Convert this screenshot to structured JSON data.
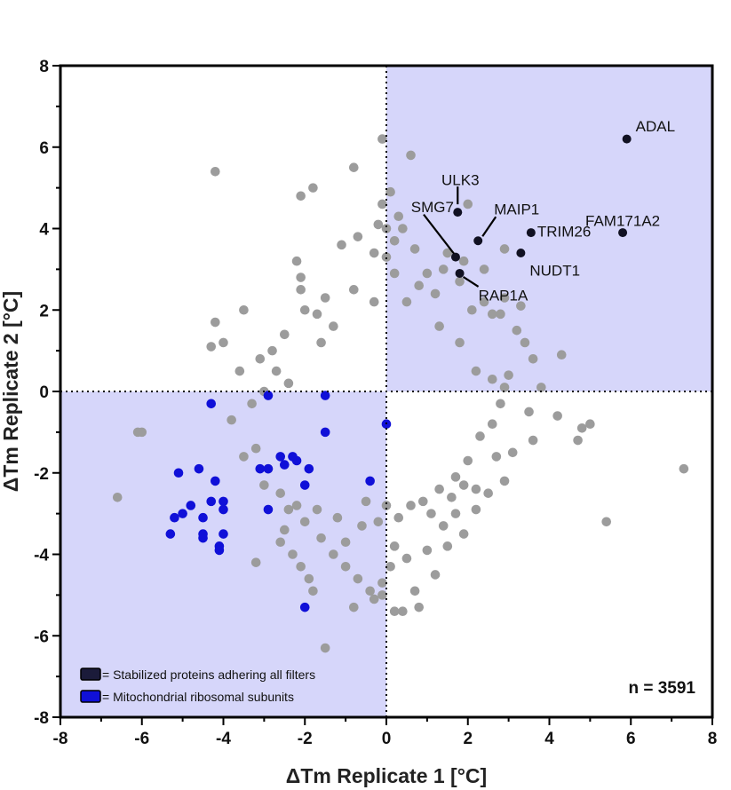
{
  "chart_data": {
    "type": "scatter",
    "xlabel": "ΔTm Replicate 1 [°C]",
    "ylabel": "ΔTm Replicate 2 [°C]",
    "xlim": [
      -8,
      8
    ],
    "ylim": [
      -8,
      8
    ],
    "xticks": [
      "-8",
      "-6",
      "-4",
      "-2",
      "0",
      "2",
      "4",
      "6",
      "8"
    ],
    "yticks": [
      "-8",
      "-6",
      "-4",
      "-2",
      "0",
      "2",
      "4",
      "6",
      "8"
    ],
    "grid": false,
    "reference_lines": [
      {
        "axis": "x",
        "value": 0,
        "style": "dotted"
      },
      {
        "axis": "y",
        "value": 0,
        "style": "dotted"
      }
    ],
    "shaded_quadrants": [
      "x>0,y>0",
      "x<0,y<0"
    ],
    "n_label": "n = 3591",
    "legend": {
      "placement": "bottom-left",
      "entries": [
        {
          "label": "= Stabilized proteins adhering all filters",
          "color": "#1b1b3a"
        },
        {
          "label": "= Mitochondrial ribosomal subunits",
          "color": "#1010d8"
        }
      ]
    },
    "series": [
      {
        "role": "background",
        "color": "#9c9c9c",
        "points": [
          [
            -0.1,
            6.2
          ],
          [
            0.6,
            5.8
          ],
          [
            -4.2,
            5.4
          ],
          [
            -0.8,
            5.5
          ],
          [
            -1.8,
            5.0
          ],
          [
            -2.1,
            4.8
          ],
          [
            0.1,
            4.9
          ],
          [
            -0.1,
            4.6
          ],
          [
            2.0,
            4.6
          ],
          [
            -0.2,
            4.1
          ],
          [
            0.3,
            4.3
          ],
          [
            -0.7,
            3.8
          ],
          [
            -1.1,
            3.6
          ],
          [
            0.7,
            3.5
          ],
          [
            1.5,
            3.4
          ],
          [
            2.4,
            3.0
          ],
          [
            -2.2,
            3.2
          ],
          [
            -2.1,
            2.8
          ],
          [
            -2.1,
            2.5
          ],
          [
            0.0,
            3.3
          ],
          [
            0.2,
            2.9
          ],
          [
            1.2,
            2.4
          ],
          [
            1.8,
            2.7
          ],
          [
            2.9,
            3.5
          ],
          [
            -3.5,
            2.0
          ],
          [
            -4.2,
            1.7
          ],
          [
            -1.3,
            1.6
          ],
          [
            2.6,
            1.9
          ],
          [
            3.2,
            1.5
          ],
          [
            3.4,
            1.2
          ],
          [
            3.6,
            0.8
          ],
          [
            4.3,
            0.9
          ],
          [
            -4.0,
            1.2
          ],
          [
            -4.3,
            1.1
          ],
          [
            -3.1,
            0.8
          ],
          [
            -2.7,
            0.5
          ],
          [
            -3.6,
            0.5
          ],
          [
            -2.4,
            0.2
          ],
          [
            2.2,
            0.5
          ],
          [
            2.6,
            0.3
          ],
          [
            3.0,
            0.4
          ],
          [
            2.9,
            0.1
          ],
          [
            3.8,
            0.1
          ],
          [
            -6.0,
            -1.0
          ],
          [
            -6.1,
            -1.0
          ],
          [
            -6.6,
            -2.6
          ],
          [
            -3.2,
            -1.4
          ],
          [
            -3.5,
            -1.6
          ],
          [
            -2.9,
            -1.9
          ],
          [
            -3.0,
            -2.3
          ],
          [
            -2.6,
            -2.5
          ],
          [
            -2.4,
            -2.9
          ],
          [
            -2.5,
            -3.4
          ],
          [
            -2.6,
            -3.7
          ],
          [
            -2.3,
            -4.0
          ],
          [
            -3.2,
            -4.2
          ],
          [
            -2.1,
            -4.3
          ],
          [
            -1.6,
            -3.6
          ],
          [
            -1.3,
            -4.0
          ],
          [
            -1.0,
            -3.7
          ],
          [
            -0.7,
            -4.6
          ],
          [
            -1.9,
            -4.6
          ],
          [
            -1.8,
            -4.9
          ],
          [
            -0.4,
            -4.9
          ],
          [
            -0.3,
            -5.1
          ],
          [
            -0.1,
            -5.0
          ],
          [
            0.2,
            -5.4
          ],
          [
            0.4,
            -5.4
          ],
          [
            0.8,
            -5.3
          ],
          [
            0.7,
            -4.9
          ],
          [
            1.2,
            -4.5
          ],
          [
            1.5,
            -3.8
          ],
          [
            -1.5,
            -6.3
          ],
          [
            1.4,
            -3.3
          ],
          [
            1.7,
            -3.0
          ],
          [
            1.9,
            -3.5
          ],
          [
            2.2,
            -2.9
          ],
          [
            2.5,
            -2.5
          ],
          [
            2.9,
            -2.2
          ],
          [
            3.1,
            -1.5
          ],
          [
            3.6,
            -1.2
          ],
          [
            4.2,
            -0.6
          ],
          [
            4.8,
            -0.9
          ],
          [
            5.0,
            -0.8
          ],
          [
            4.7,
            -1.2
          ],
          [
            7.3,
            -1.9
          ],
          [
            5.4,
            -3.2
          ],
          [
            0.2,
            -3.8
          ],
          [
            -0.2,
            -3.2
          ],
          [
            0.0,
            -2.8
          ],
          [
            2.6,
            -0.8
          ],
          [
            2.3,
            -1.1
          ],
          [
            2.0,
            -1.7
          ],
          [
            1.7,
            -2.1
          ],
          [
            1.3,
            -2.4
          ],
          [
            0.9,
            -2.7
          ],
          [
            3.5,
            -0.5
          ],
          [
            2.8,
            -0.3
          ],
          [
            -2.0,
            2.0
          ],
          [
            -1.7,
            1.9
          ],
          [
            1.3,
            1.6
          ],
          [
            1.8,
            1.2
          ],
          [
            2.1,
            2.0
          ],
          [
            0.5,
            2.2
          ],
          [
            1.0,
            2.9
          ],
          [
            0.8,
            2.6
          ],
          [
            0.2,
            3.7
          ],
          [
            -0.3,
            2.2
          ],
          [
            -0.8,
            2.5
          ],
          [
            -1.5,
            2.3
          ],
          [
            -1.6,
            1.2
          ],
          [
            2.7,
            -1.6
          ],
          [
            2.2,
            -2.4
          ],
          [
            -3.3,
            -0.3
          ],
          [
            -3.8,
            -0.7
          ],
          [
            -3.0,
            0.0
          ],
          [
            0.1,
            -4.3
          ],
          [
            -0.1,
            -4.7
          ],
          [
            0.5,
            -4.1
          ],
          [
            1.0,
            -3.9
          ],
          [
            -2.2,
            -2.8
          ],
          [
            -2.0,
            -3.2
          ],
          [
            -1.7,
            -2.9
          ],
          [
            -1.2,
            -3.1
          ],
          [
            -0.6,
            -3.3
          ],
          [
            -0.5,
            -2.7
          ],
          [
            0.3,
            -3.1
          ],
          [
            0.6,
            -2.8
          ],
          [
            1.1,
            -3.0
          ],
          [
            1.6,
            -2.6
          ],
          [
            1.9,
            -2.3
          ],
          [
            0.0,
            4.0
          ],
          [
            0.4,
            4.0
          ],
          [
            -0.3,
            3.4
          ],
          [
            1.4,
            3.0
          ],
          [
            1.9,
            3.2
          ],
          [
            2.4,
            2.2
          ],
          [
            2.8,
            1.9
          ],
          [
            -2.5,
            1.4
          ],
          [
            -2.8,
            1.0
          ],
          [
            2.9,
            2.3
          ],
          [
            3.3,
            2.1
          ],
          [
            -1.0,
            -4.3
          ],
          [
            -0.8,
            -5.3
          ]
        ]
      },
      {
        "name": "Mitochondrial ribosomal subunits",
        "color": "#1010d8",
        "points": [
          [
            -4.3,
            -0.3
          ],
          [
            -2.9,
            -0.1
          ],
          [
            -1.5,
            -0.1
          ],
          [
            -1.5,
            -1.0
          ],
          [
            0.0,
            -0.8
          ],
          [
            -5.1,
            -2.0
          ],
          [
            -4.6,
            -1.9
          ],
          [
            -4.2,
            -2.2
          ],
          [
            -3.1,
            -1.9
          ],
          [
            -2.9,
            -1.9
          ],
          [
            -2.6,
            -1.6
          ],
          [
            -2.5,
            -1.8
          ],
          [
            -2.2,
            -1.7
          ],
          [
            -2.3,
            -1.6
          ],
          [
            -1.9,
            -1.9
          ],
          [
            -2.0,
            -2.3
          ],
          [
            -4.3,
            -2.7
          ],
          [
            -4.0,
            -2.7
          ],
          [
            -4.0,
            -2.9
          ],
          [
            -2.9,
            -2.9
          ],
          [
            -4.8,
            -2.8
          ],
          [
            -5.0,
            -3.0
          ],
          [
            -5.2,
            -3.1
          ],
          [
            -4.5,
            -3.1
          ],
          [
            -4.5,
            -3.5
          ],
          [
            -4.5,
            -3.6
          ],
          [
            -5.3,
            -3.5
          ],
          [
            -4.0,
            -3.5
          ],
          [
            -4.1,
            -3.8
          ],
          [
            -4.1,
            -3.9
          ],
          [
            -2.0,
            -5.3
          ],
          [
            -0.4,
            -2.2
          ]
        ]
      },
      {
        "name": "Stabilized proteins adhering all filters",
        "color": "#111122",
        "points": [
          {
            "label": "ADAL",
            "x": 5.9,
            "y": 6.2
          },
          {
            "label": "ULK3",
            "x": 1.75,
            "y": 4.4
          },
          {
            "label": "MAIP1",
            "x": 2.25,
            "y": 3.7
          },
          {
            "label": "SMG7",
            "x": 1.7,
            "y": 3.3
          },
          {
            "label": "TRIM26",
            "x": 3.55,
            "y": 3.9
          },
          {
            "label": "FAM171A2",
            "x": 5.8,
            "y": 3.9
          },
          {
            "label": "NUDT1",
            "x": 3.3,
            "y": 3.4
          },
          {
            "label": "RAP1A",
            "x": 1.8,
            "y": 2.9
          }
        ]
      }
    ]
  }
}
